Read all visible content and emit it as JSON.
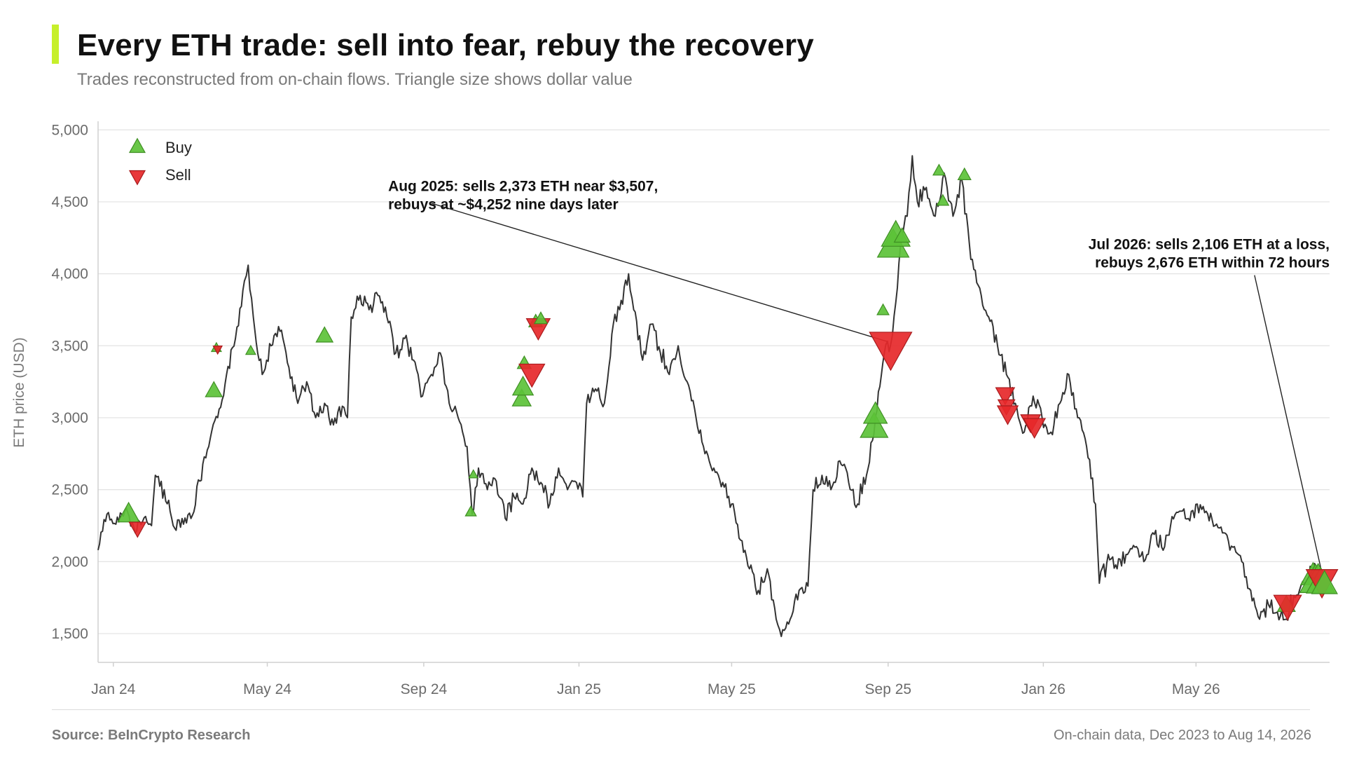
{
  "title": "Every ETH trade: sell into fear, rebuy the recovery",
  "subtitle": "Trades reconstructed from on-chain flows. Triangle size shows dollar value",
  "footer": {
    "source": "Source: BeInCrypto Research",
    "note": "On-chain data, Dec 2023 to Aug 14, 2026"
  },
  "colors": {
    "accent": "#c6ef2b",
    "buy": "#5cc238",
    "sell": "#e6282a",
    "price_line": "#333333"
  },
  "chart_data": {
    "type": "line",
    "ylabel": "ETH price (USD)",
    "xlabel": "",
    "ylim": [
      1300,
      5050
    ],
    "xlim": [
      "2023-12-20",
      "2026-08-14"
    ],
    "yticks": [
      1500,
      2000,
      2500,
      3000,
      3500,
      4000,
      4500,
      5000
    ],
    "ytick_labels": [
      "1,500",
      "2,000",
      "2,500",
      "3,000",
      "3,500",
      "4,000",
      "4,500",
      "5,000"
    ],
    "xticks": [
      {
        "date": "2024-01-01",
        "label": "Jan 24"
      },
      {
        "date": "2024-05-01",
        "label": "May 24"
      },
      {
        "date": "2024-09-01",
        "label": "Sep 24"
      },
      {
        "date": "2025-01-01",
        "label": "Jan 25"
      },
      {
        "date": "2025-05-01",
        "label": "May 25"
      },
      {
        "date": "2025-09-01",
        "label": "Sep 25"
      },
      {
        "date": "2026-01-01",
        "label": "Jan 26"
      },
      {
        "date": "2026-05-01",
        "label": "May 26"
      }
    ],
    "grid": "horizontal",
    "legend": {
      "placement": "top-left",
      "entries": [
        {
          "key": "buy",
          "label": "Buy"
        },
        {
          "key": "sell",
          "label": "Sell"
        }
      ]
    },
    "price_series": [
      [
        "2023-12-20",
        2080
      ],
      [
        "2023-12-27",
        2330
      ],
      [
        "2024-01-03",
        2260
      ],
      [
        "2024-01-10",
        2350
      ],
      [
        "2024-01-17",
        2240
      ],
      [
        "2024-01-24",
        2280
      ],
      [
        "2024-01-31",
        2250
      ],
      [
        "2024-02-03",
        2600
      ],
      [
        "2024-02-10",
        2500
      ],
      [
        "2024-02-17",
        2250
      ],
      [
        "2024-02-24",
        2300
      ],
      [
        "2024-03-02",
        2300
      ],
      [
        "2024-03-09",
        2560
      ],
      [
        "2024-03-16",
        2800
      ],
      [
        "2024-03-23",
        3000
      ],
      [
        "2024-03-30",
        3300
      ],
      [
        "2024-04-06",
        3550
      ],
      [
        "2024-04-13",
        3950
      ],
      [
        "2024-04-16",
        4060
      ],
      [
        "2024-04-20",
        3700
      ],
      [
        "2024-04-27",
        3300
      ],
      [
        "2024-05-04",
        3500
      ],
      [
        "2024-05-11",
        3600
      ],
      [
        "2024-05-18",
        3350
      ],
      [
        "2024-05-25",
        3100
      ],
      [
        "2024-06-01",
        3250
      ],
      [
        "2024-06-08",
        3000
      ],
      [
        "2024-06-15",
        3100
      ],
      [
        "2024-06-22",
        2950
      ],
      [
        "2024-06-29",
        3080
      ],
      [
        "2024-07-03",
        3000
      ],
      [
        "2024-07-06",
        3700
      ],
      [
        "2024-07-13",
        3850
      ],
      [
        "2024-07-20",
        3750
      ],
      [
        "2024-07-27",
        3850
      ],
      [
        "2024-08-03",
        3700
      ],
      [
        "2024-08-10",
        3450
      ],
      [
        "2024-08-17",
        3550
      ],
      [
        "2024-08-24",
        3400
      ],
      [
        "2024-08-31",
        3150
      ],
      [
        "2024-09-07",
        3300
      ],
      [
        "2024-09-14",
        3450
      ],
      [
        "2024-09-21",
        3100
      ],
      [
        "2024-09-28",
        3000
      ],
      [
        "2024-10-05",
        2800
      ],
      [
        "2024-10-09",
        2330
      ],
      [
        "2024-10-14",
        2650
      ],
      [
        "2024-10-21",
        2500
      ],
      [
        "2024-10-28",
        2560
      ],
      [
        "2024-11-04",
        2300
      ],
      [
        "2024-11-11",
        2450
      ],
      [
        "2024-11-18",
        2400
      ],
      [
        "2024-11-25",
        2650
      ],
      [
        "2024-12-02",
        2550
      ],
      [
        "2024-12-09",
        2400
      ],
      [
        "2024-12-16",
        2650
      ],
      [
        "2024-12-23",
        2500
      ],
      [
        "2024-12-30",
        2550
      ],
      [
        "2025-01-04",
        2450
      ],
      [
        "2025-01-07",
        3100
      ],
      [
        "2025-01-14",
        3200
      ],
      [
        "2025-01-21",
        3100
      ],
      [
        "2025-01-28",
        3650
      ],
      [
        "2025-02-02",
        3750
      ],
      [
        "2025-02-09",
        4000
      ],
      [
        "2025-02-13",
        3750
      ],
      [
        "2025-02-20",
        3400
      ],
      [
        "2025-02-27",
        3650
      ],
      [
        "2025-03-06",
        3450
      ],
      [
        "2025-03-13",
        3300
      ],
      [
        "2025-03-20",
        3500
      ],
      [
        "2025-03-27",
        3250
      ],
      [
        "2025-04-03",
        3000
      ],
      [
        "2025-04-10",
        2750
      ],
      [
        "2025-04-17",
        2650
      ],
      [
        "2025-04-24",
        2550
      ],
      [
        "2025-05-01",
        2400
      ],
      [
        "2025-05-08",
        2150
      ],
      [
        "2025-05-15",
        1950
      ],
      [
        "2025-05-22",
        1800
      ],
      [
        "2025-05-29",
        1950
      ],
      [
        "2025-06-05",
        1600
      ],
      [
        "2025-06-09",
        1480
      ],
      [
        "2025-06-16",
        1600
      ],
      [
        "2025-06-23",
        1800
      ],
      [
        "2025-06-30",
        1830
      ],
      [
        "2025-07-04",
        2500
      ],
      [
        "2025-07-11",
        2600
      ],
      [
        "2025-07-18",
        2500
      ],
      [
        "2025-07-25",
        2700
      ],
      [
        "2025-08-01",
        2550
      ],
      [
        "2025-08-08",
        2400
      ],
      [
        "2025-08-15",
        2600
      ],
      [
        "2025-08-22",
        3000
      ],
      [
        "2025-08-29",
        3450
      ],
      [
        "2025-09-03",
        3507
      ],
      [
        "2025-09-07",
        3800
      ],
      [
        "2025-09-12",
        4252
      ],
      [
        "2025-09-16",
        4400
      ],
      [
        "2025-09-20",
        4820
      ],
      [
        "2025-09-24",
        4500
      ],
      [
        "2025-10-01",
        4600
      ],
      [
        "2025-10-08",
        4400
      ],
      [
        "2025-10-15",
        4700
      ],
      [
        "2025-10-22",
        4400
      ],
      [
        "2025-10-29",
        4650
      ],
      [
        "2025-11-05",
        4100
      ],
      [
        "2025-11-12",
        3900
      ],
      [
        "2025-11-19",
        3700
      ],
      [
        "2025-11-26",
        3500
      ],
      [
        "2025-12-03",
        3300
      ],
      [
        "2025-12-10",
        3100
      ],
      [
        "2025-12-17",
        2900
      ],
      [
        "2025-12-24",
        3150
      ],
      [
        "2025-12-31",
        3000
      ],
      [
        "2026-01-07",
        2900
      ],
      [
        "2026-01-14",
        3100
      ],
      [
        "2026-01-21",
        3300
      ],
      [
        "2026-01-28",
        3000
      ],
      [
        "2026-02-04",
        2800
      ],
      [
        "2026-02-11",
        2400
      ],
      [
        "2026-02-14",
        1850
      ],
      [
        "2026-02-21",
        2050
      ],
      [
        "2026-02-28",
        1950
      ],
      [
        "2026-03-07",
        2050
      ],
      [
        "2026-03-14",
        2100
      ],
      [
        "2026-03-21",
        2000
      ],
      [
        "2026-03-28",
        2200
      ],
      [
        "2026-04-04",
        2100
      ],
      [
        "2026-04-11",
        2250
      ],
      [
        "2026-04-18",
        2350
      ],
      [
        "2026-04-25",
        2300
      ],
      [
        "2026-05-02",
        2400
      ],
      [
        "2026-05-09",
        2350
      ],
      [
        "2026-05-16",
        2250
      ],
      [
        "2026-05-23",
        2200
      ],
      [
        "2026-05-30",
        2100
      ],
      [
        "2026-06-06",
        2000
      ],
      [
        "2026-06-13",
        1800
      ],
      [
        "2026-06-20",
        1600
      ],
      [
        "2026-06-27",
        1700
      ],
      [
        "2026-07-04",
        1650
      ],
      [
        "2026-07-11",
        1600
      ],
      [
        "2026-07-18",
        1750
      ],
      [
        "2026-07-25",
        1850
      ],
      [
        "2026-08-01",
        1950
      ],
      [
        "2026-08-07",
        1900
      ],
      [
        "2026-08-14",
        1880
      ]
    ],
    "trades": [
      {
        "date": "2024-01-13",
        "price": 2320,
        "side": "buy",
        "size": 2.2
      },
      {
        "date": "2024-01-20",
        "price": 2240,
        "side": "sell",
        "size": 1.7
      },
      {
        "date": "2024-03-20",
        "price": 3180,
        "side": "buy",
        "size": 1.7
      },
      {
        "date": "2024-03-22",
        "price": 3480,
        "side": "buy",
        "size": 1.0
      },
      {
        "date": "2024-03-23",
        "price": 3480,
        "side": "sell",
        "size": 0.9
      },
      {
        "date": "2024-04-18",
        "price": 3460,
        "side": "buy",
        "size": 1.0
      },
      {
        "date": "2024-06-15",
        "price": 3560,
        "side": "buy",
        "size": 1.7
      },
      {
        "date": "2024-10-08",
        "price": 2340,
        "side": "buy",
        "size": 1.1
      },
      {
        "date": "2024-10-10",
        "price": 2600,
        "side": "buy",
        "size": 0.9
      },
      {
        "date": "2024-11-17",
        "price": 3120,
        "side": "buy",
        "size": 1.9
      },
      {
        "date": "2024-11-18",
        "price": 3200,
        "side": "buy",
        "size": 2.1
      },
      {
        "date": "2024-11-19",
        "price": 3370,
        "side": "buy",
        "size": 1.4
      },
      {
        "date": "2024-11-25",
        "price": 3320,
        "side": "sell",
        "size": 2.6
      },
      {
        "date": "2024-11-28",
        "price": 3660,
        "side": "buy",
        "size": 1.4
      },
      {
        "date": "2024-11-30",
        "price": 3640,
        "side": "sell",
        "size": 2.4
      },
      {
        "date": "2024-12-02",
        "price": 3680,
        "side": "buy",
        "size": 1.3
      },
      {
        "date": "2025-08-21",
        "price": 2920,
        "side": "buy",
        "size": 2.8
      },
      {
        "date": "2025-08-22",
        "price": 3010,
        "side": "buy",
        "size": 2.4
      },
      {
        "date": "2025-08-28",
        "price": 3740,
        "side": "buy",
        "size": 1.2
      },
      {
        "date": "2025-09-03",
        "price": 3507,
        "side": "sell",
        "size": 4.3
      },
      {
        "date": "2025-09-05",
        "price": 4180,
        "side": "buy",
        "size": 3.2
      },
      {
        "date": "2025-09-07",
        "price": 4250,
        "side": "buy",
        "size": 2.9
      },
      {
        "date": "2025-09-12",
        "price": 4252,
        "side": "buy",
        "size": 1.6
      },
      {
        "date": "2025-10-11",
        "price": 4710,
        "side": "buy",
        "size": 1.2
      },
      {
        "date": "2025-10-14",
        "price": 4500,
        "side": "buy",
        "size": 1.2
      },
      {
        "date": "2025-10-31",
        "price": 4680,
        "side": "buy",
        "size": 1.3
      },
      {
        "date": "2025-12-02",
        "price": 3170,
        "side": "sell",
        "size": 1.9
      },
      {
        "date": "2025-12-03",
        "price": 3090,
        "side": "sell",
        "size": 1.7
      },
      {
        "date": "2025-12-04",
        "price": 3040,
        "side": "sell",
        "size": 2.1
      },
      {
        "date": "2025-12-22",
        "price": 2980,
        "side": "sell",
        "size": 2.0
      },
      {
        "date": "2025-12-25",
        "price": 2950,
        "side": "sell",
        "size": 2.2
      },
      {
        "date": "2026-07-11",
        "price": 1690,
        "side": "buy",
        "size": 1.8
      },
      {
        "date": "2026-07-12",
        "price": 1710,
        "side": "sell",
        "size": 2.8
      },
      {
        "date": "2026-08-01",
        "price": 1890,
        "side": "buy",
        "size": 2.5
      },
      {
        "date": "2026-08-03",
        "price": 1850,
        "side": "buy",
        "size": 3.2
      },
      {
        "date": "2026-08-05",
        "price": 1920,
        "side": "buy",
        "size": 1.6
      },
      {
        "date": "2026-08-07",
        "price": 1840,
        "side": "buy",
        "size": 2.9
      },
      {
        "date": "2026-08-08",
        "price": 1880,
        "side": "sell",
        "size": 3.2
      },
      {
        "date": "2026-08-10",
        "price": 1830,
        "side": "buy",
        "size": 2.6
      }
    ],
    "annotations": [
      {
        "id": "aug2025",
        "lines": [
          "Aug 2025: sells 2,373 ETH near $3,507,",
          "rebuys at ~$4,252 nine days later"
        ],
        "anchor": "start",
        "text_pos": {
          "date": "2024-08-04",
          "price": 4575
        },
        "arrow_from": {
          "date": "2024-09-07",
          "price": 4490
        },
        "arrow_to": {
          "date": "2025-08-31",
          "price": 3530
        }
      },
      {
        "id": "jul2026",
        "lines": [
          "Jul 2026: sells 2,106 ETH at a loss,",
          "rebuys 2,676 ETH within 72 hours"
        ],
        "anchor": "end",
        "text_pos": {
          "date": "2026-08-14",
          "price": 4170
        },
        "arrow_from": {
          "date": "2026-06-16",
          "price": 3990
        },
        "arrow_to": {
          "date": "2026-08-07",
          "price": 1960
        }
      }
    ]
  }
}
